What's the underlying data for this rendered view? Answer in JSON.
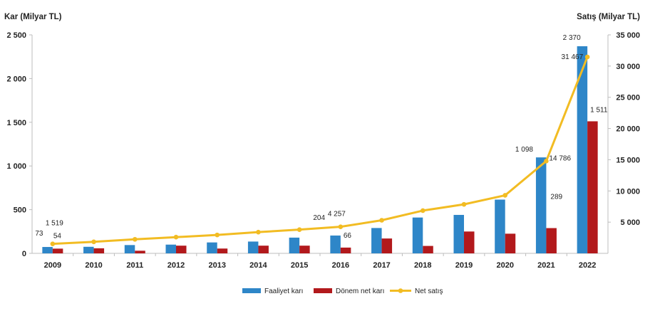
{
  "chart_data": {
    "type": "bar",
    "y_axis_left_title": "Kar (Milyar TL)",
    "y_axis_right_title": "Satış (Milyar TL)",
    "categories": [
      "2009",
      "2010",
      "2011",
      "2012",
      "2013",
      "2014",
      "2015",
      "2016",
      "2017",
      "2018",
      "2019",
      "2020",
      "2021",
      "2022"
    ],
    "ylim_left": [
      0,
      2500
    ],
    "yticks_left": [
      0,
      500,
      1000,
      1500,
      2000,
      2500
    ],
    "ytick_labels_left": [
      "0",
      "500",
      "1 000",
      "1 500",
      "2 000",
      "2 500"
    ],
    "ylim_right": [
      0,
      35000
    ],
    "yticks_right": [
      5000,
      10000,
      15000,
      20000,
      25000,
      30000,
      35000
    ],
    "ytick_labels_right": [
      "5 000",
      "10 000",
      "15 000",
      "20 000",
      "25 000",
      "30 000",
      "35 000"
    ],
    "grid": false,
    "legend_position": "bottom",
    "series": [
      {
        "name": "Faaliyet karı",
        "kind": "bar",
        "axis": "left",
        "color": "#2E86C8",
        "values": [
          73,
          75,
          95,
          100,
          125,
          135,
          180,
          204,
          290,
          410,
          440,
          615,
          1098,
          2370
        ]
      },
      {
        "name": "Dönem net karı",
        "kind": "bar",
        "axis": "left",
        "color": "#B2191C",
        "values": [
          54,
          58,
          30,
          88,
          55,
          88,
          88,
          66,
          170,
          85,
          250,
          225,
          289,
          1511
        ]
      },
      {
        "name": "Net satış",
        "kind": "line",
        "axis": "right",
        "color": "#F2BC23",
        "values": [
          1519,
          1850,
          2250,
          2600,
          2950,
          3400,
          3800,
          4257,
          5300,
          6850,
          7850,
          9300,
          14786,
          31467
        ]
      }
    ],
    "data_labels": [
      {
        "series": 0,
        "index": 0,
        "text": "73"
      },
      {
        "series": 1,
        "index": 0,
        "text": "54"
      },
      {
        "series": 2,
        "index": 0,
        "text": "1 519"
      },
      {
        "series": 0,
        "index": 7,
        "text": "204"
      },
      {
        "series": 1,
        "index": 7,
        "text": "66"
      },
      {
        "series": 2,
        "index": 7,
        "text": "4 257"
      },
      {
        "series": 0,
        "index": 12,
        "text": "1 098"
      },
      {
        "series": 1,
        "index": 12,
        "text": "289"
      },
      {
        "series": 2,
        "index": 12,
        "text": "14 786"
      },
      {
        "series": 0,
        "index": 13,
        "text": "2 370"
      },
      {
        "series": 1,
        "index": 13,
        "text": "1 511"
      },
      {
        "series": 2,
        "index": 13,
        "text": "31 467"
      }
    ]
  }
}
